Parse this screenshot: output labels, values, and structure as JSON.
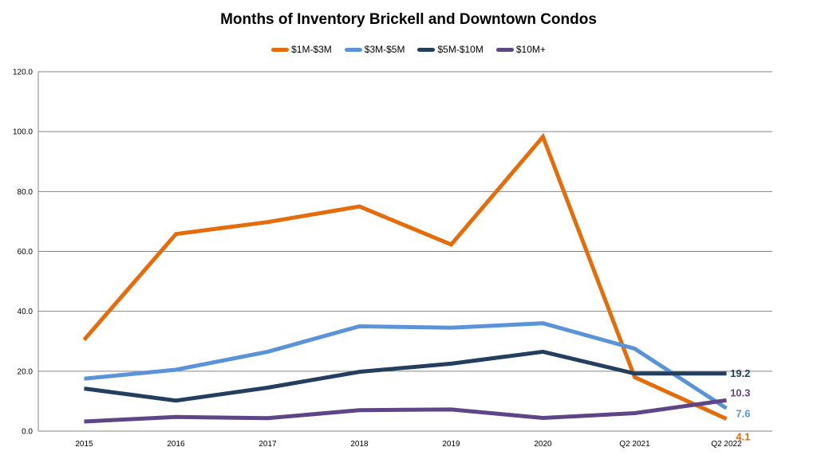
{
  "chart_data": {
    "type": "line",
    "title": "Months of Inventory Brickell and Downtown Condos",
    "xlabel": "",
    "ylabel": "",
    "categories": [
      "2015",
      "2016",
      "2017",
      "2018",
      "2019",
      "2020",
      "Q2 2021",
      "Q2 2022"
    ],
    "y_ticks": [
      "0.0",
      "20.0",
      "40.0",
      "60.0",
      "80.0",
      "100.0",
      "120.0"
    ],
    "ylim": [
      0,
      120
    ],
    "grid": true,
    "legend_position": "top",
    "series": [
      {
        "name": "$1M-$3M",
        "color": "#E46C0A",
        "values": [
          30.5,
          65.8,
          69.8,
          75.0,
          62.3,
          98.3,
          18.0,
          4.1
        ],
        "end_label": "4.1"
      },
      {
        "name": "$3M-$5M",
        "color": "#5B93D8",
        "values": [
          17.5,
          20.5,
          26.5,
          35.0,
          34.5,
          36.0,
          27.5,
          7.6
        ],
        "end_label": "7.6"
      },
      {
        "name": "$5M-$10M",
        "color": "#243E5E",
        "values": [
          14.2,
          10.2,
          14.5,
          19.8,
          22.5,
          26.5,
          19.2,
          19.2
        ],
        "end_label": "19.2"
      },
      {
        "name": "$10M+",
        "color": "#5E4585",
        "values": [
          3.2,
          4.7,
          4.3,
          7.0,
          7.2,
          4.4,
          6.0,
          10.3
        ],
        "end_label": "10.3"
      }
    ]
  }
}
